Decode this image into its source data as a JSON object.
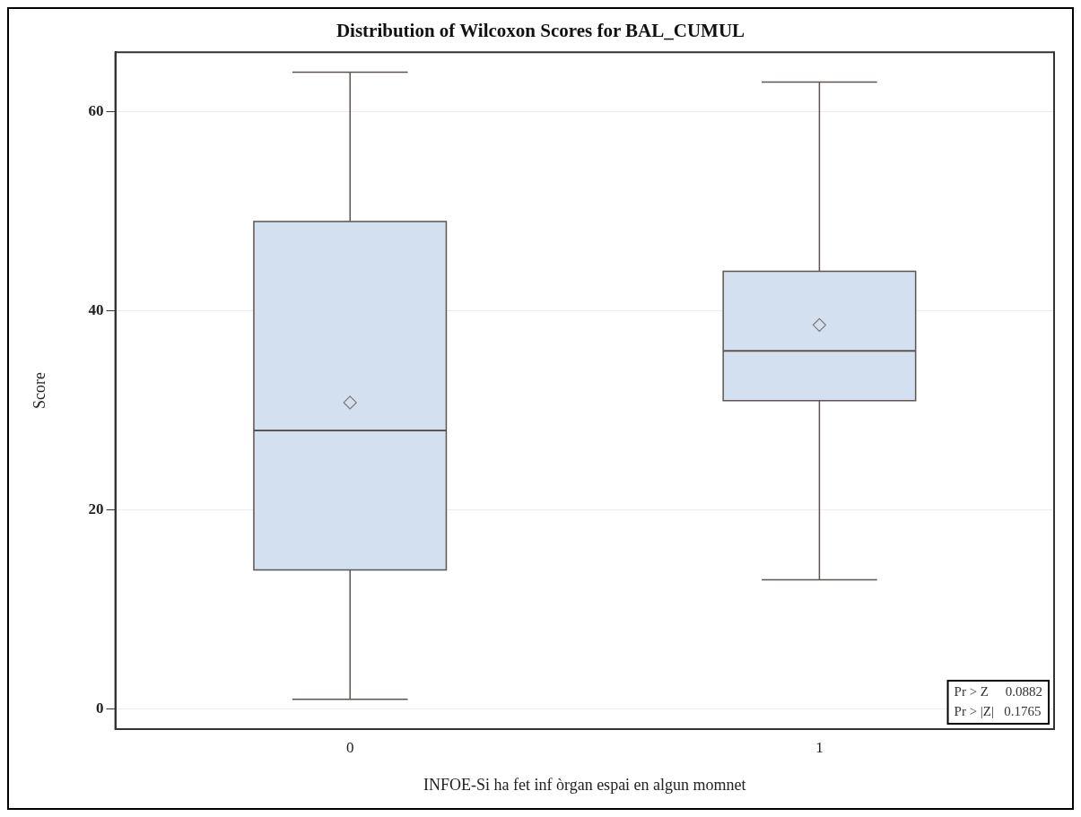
{
  "chart_data": {
    "type": "box",
    "title": "Distribution of Wilcoxon Scores for BAL_CUMUL",
    "xlabel": "INFOE-Si ha fet inf òrgan espai en algun momnet",
    "ylabel": "Score",
    "categories": [
      "0",
      "1"
    ],
    "series": [
      {
        "color": "#d3e0ef",
        "boxes": [
          {
            "low": 1,
            "q1": 14,
            "median": 28,
            "q3": 49,
            "high": 64,
            "mean": 30.8
          },
          {
            "low": 13,
            "q1": 31,
            "median": 36,
            "q3": 44,
            "high": 63,
            "mean": 38.6
          }
        ]
      }
    ],
    "ylim": [
      -2,
      66
    ],
    "yticks": [
      0,
      20,
      40,
      60
    ],
    "grid": "y",
    "legend": false,
    "annotations": [
      "Pr > Z     0.0882",
      "Pr > |Z|   0.1765"
    ]
  }
}
